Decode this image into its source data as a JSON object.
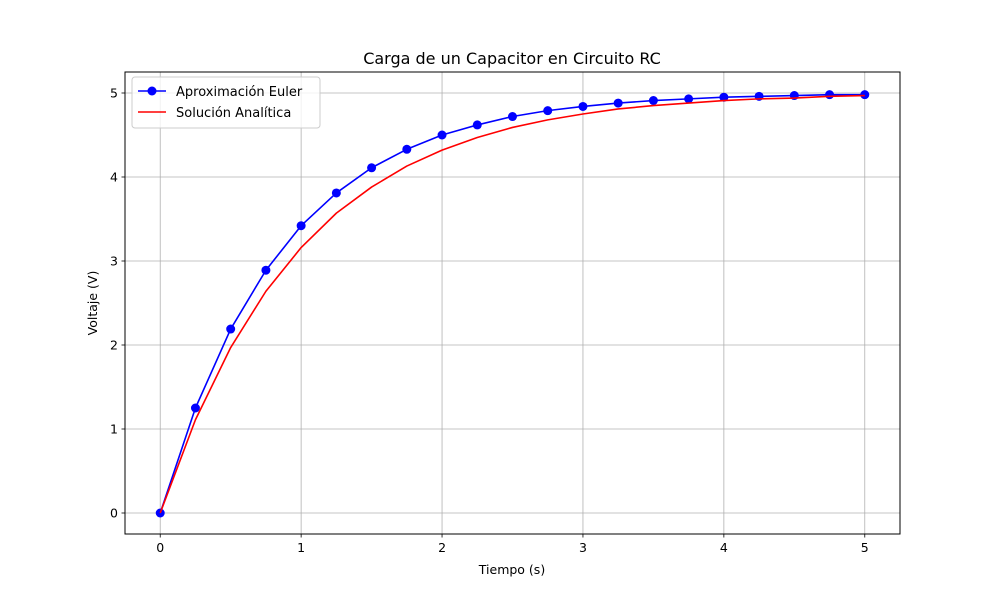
{
  "chart_data": {
    "type": "line",
    "title": "Carga de un Capacitor en Circuito RC",
    "xlabel": "Tiempo (s)",
    "ylabel": "Voltaje (V)",
    "xlim": [
      -0.25,
      5.25
    ],
    "ylim": [
      -0.25,
      5.25
    ],
    "xticks": [
      0,
      1,
      2,
      3,
      4,
      5
    ],
    "yticks": [
      0,
      1,
      2,
      3,
      4,
      5
    ],
    "grid": true,
    "legend_position": "top-left",
    "series": [
      {
        "name": "Aproximación Euler",
        "color": "#0000ff",
        "marker": "circle",
        "x": [
          0,
          0.25,
          0.5,
          0.75,
          1.0,
          1.25,
          1.5,
          1.75,
          2.0,
          2.25,
          2.5,
          2.75,
          3.0,
          3.25,
          3.5,
          3.75,
          4.0,
          4.25,
          4.5,
          4.75,
          5.0
        ],
        "y": [
          0,
          1.25,
          2.19,
          2.89,
          3.42,
          3.81,
          4.11,
          4.33,
          4.5,
          4.62,
          4.72,
          4.79,
          4.84,
          4.88,
          4.91,
          4.93,
          4.95,
          4.96,
          4.97,
          4.98,
          4.98
        ]
      },
      {
        "name": "Solución Analítica",
        "color": "#ff0000",
        "marker": "none",
        "x": [
          0,
          0.25,
          0.5,
          0.75,
          1.0,
          1.25,
          1.5,
          1.75,
          2.0,
          2.25,
          2.5,
          2.75,
          3.0,
          3.25,
          3.5,
          3.75,
          4.0,
          4.25,
          4.5,
          4.75,
          5.0
        ],
        "y": [
          0,
          1.11,
          1.97,
          2.64,
          3.16,
          3.57,
          3.88,
          4.13,
          4.32,
          4.47,
          4.59,
          4.68,
          4.75,
          4.81,
          4.85,
          4.88,
          4.91,
          4.93,
          4.94,
          4.96,
          4.97
        ]
      }
    ]
  }
}
